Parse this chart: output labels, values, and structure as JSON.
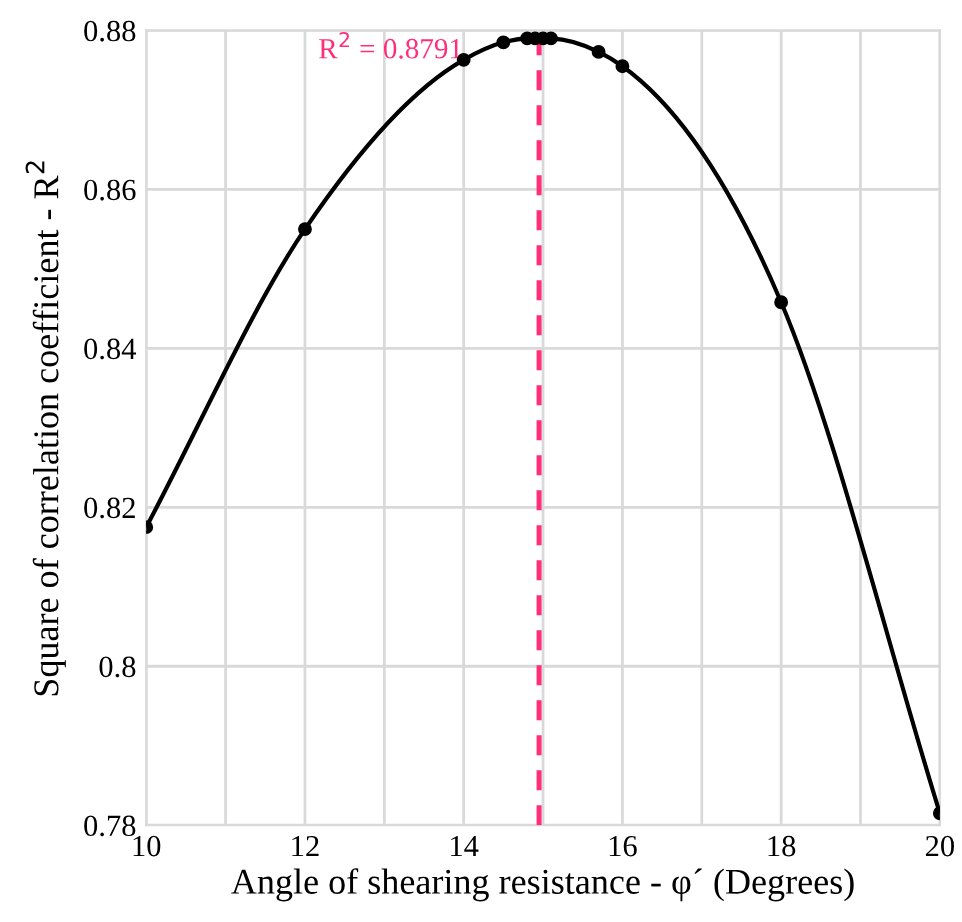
{
  "chart_data": {
    "type": "line",
    "xlabel": "Angle of shearing resistance - φ´ (Degrees)",
    "ylabel": "Square of correlation coefficient - R$^{2}$",
    "series": [
      {
        "color": "#000000",
        "x": [
          10,
          12,
          14,
          14.5,
          14.8,
          14.9,
          15,
          15.1,
          15.7,
          16,
          18,
          20
        ],
        "values": [
          0.8175,
          0.855,
          0.8763,
          0.8785,
          0.879,
          0.879,
          0.879,
          0.879,
          0.8773,
          0.8755,
          0.8458,
          0.7815
        ]
      }
    ],
    "marker": "circle",
    "line_style": "solid",
    "xlim": [
      10,
      20
    ],
    "ylim": [
      0.78,
      0.88
    ],
    "xticks": [
      10,
      {
        "value": 11,
        "label": null
      },
      12,
      {
        "value": 13,
        "label": null
      },
      14,
      {
        "value": 15,
        "label": null
      },
      16,
      {
        "value": 17,
        "label": null
      },
      18,
      {
        "value": 19,
        "label": null
      },
      20
    ],
    "yticks": [
      0.78,
      0.8,
      0.82,
      0.84,
      0.86,
      0.88
    ],
    "grid": true,
    "annotations": [
      {
        "text": "R$^{2}$ = 0.8791",
        "x": 14.95,
        "y": 0.8791
      }
    ],
    "ref_lines": [
      {
        "axis": "x",
        "value": 14.95,
        "color": "#ff2d7a",
        "line_style": "dashed"
      }
    ]
  }
}
